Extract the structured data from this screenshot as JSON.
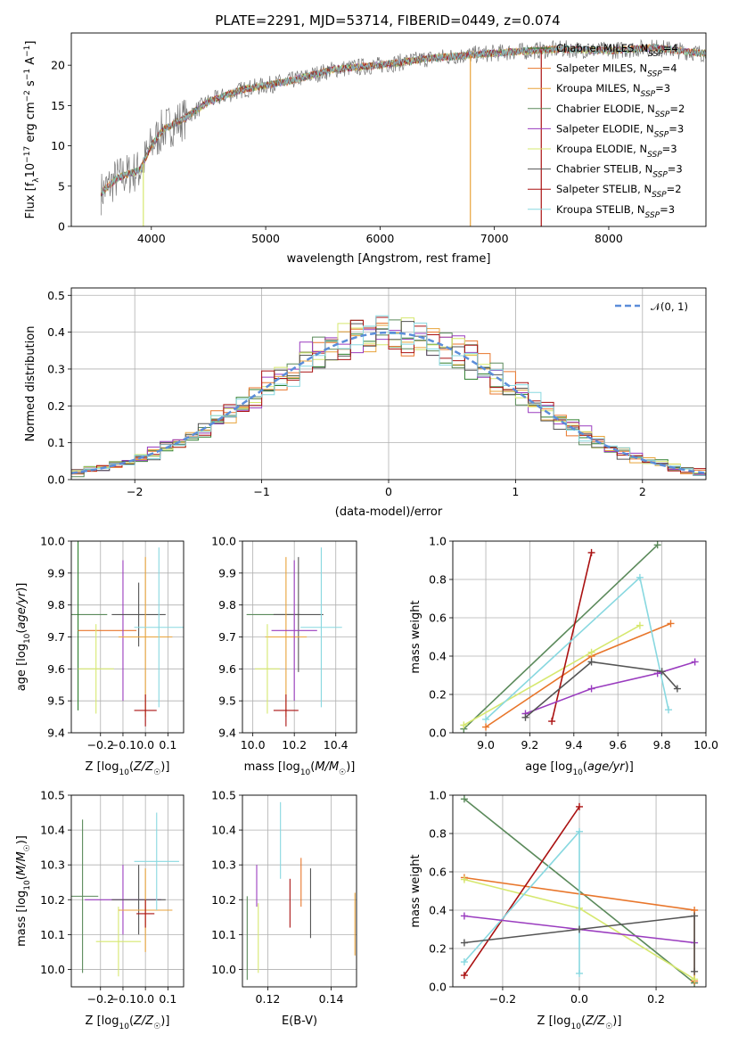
{
  "figure": {
    "title": "PLATE=2291, MJD=53714, FIBERID=0449, z=0.074"
  },
  "colors": {
    "palette": [
      "#2d7f2d",
      "#e8762b",
      "#e8a33a",
      "#5b8a5b",
      "#9a3cbf",
      "#d6e86f",
      "#555555",
      "#aa1111",
      "#88d8e0"
    ],
    "model_order": [
      "Chabrier MILES",
      "Salpeter MILES",
      "Kroupa MILES",
      "Chabrier ELODIE",
      "Salpeter ELODIE",
      "Kroupa ELODIE",
      "Chabrier STELIB",
      "Salpeter STELIB",
      "Kroupa STELIB"
    ]
  },
  "chart_data": [
    {
      "id": "spectrum",
      "type": "line",
      "title": "PLATE=2291, MJD=53714, FIBERID=0449, z=0.074",
      "xlabel": "wavelength [Angstrom, rest frame]",
      "ylabel": "Flux [f_λ 10^-17 erg cm^-2 s^-1 A^-1]",
      "xlim": [
        3300,
        8850
      ],
      "ylim": [
        0,
        24
      ],
      "xticks": [
        4000,
        5000,
        6000,
        7000,
        8000
      ],
      "yticks": [
        0,
        5,
        10,
        15,
        20
      ],
      "legend": [
        "Chabrier MILES, N_SSP=4",
        "Salpeter MILES, N_SSP=4",
        "Kroupa MILES, N_SSP=3",
        "Chabrier ELODIE, N_SSP=2",
        "Salpeter ELODIE, N_SSP=3",
        "Kroupa ELODIE, N_SSP=3",
        "Chabrier STELIB, N_SSP=3",
        "Salpeter STELIB, N_SSP=2",
        "Kroupa STELIB, N_SSP=3"
      ],
      "legend_loc": "upper right",
      "continuum": {
        "x": [
          3550,
          3700,
          3900,
          4000,
          4100,
          4300,
          4500,
          4800,
          5200,
          5600,
          6000,
          6400,
          6800,
          7200,
          7600,
          8000,
          8400,
          8800
        ],
        "y": [
          4,
          6,
          7,
          10,
          12,
          13.5,
          15.5,
          17,
          18,
          19.5,
          20,
          20.8,
          21.3,
          21.7,
          22,
          21.8,
          22.2,
          21.5
        ]
      }
    },
    {
      "id": "residuals",
      "type": "histogram",
      "xlabel": "(data-model)/error",
      "ylabel": "Normed distribution",
      "xlim": [
        -2.5,
        2.5
      ],
      "ylim": [
        0,
        0.52
      ],
      "xticks": [
        -2,
        -1,
        0,
        1,
        2
      ],
      "yticks": [
        0.0,
        0.1,
        0.2,
        0.3,
        0.4,
        0.5
      ],
      "grid": true,
      "reference": {
        "name": "N(0,1)",
        "label": "𝒩(0, 1)",
        "color": "#5b8dd9"
      },
      "bin_width": 0.1
    },
    {
      "id": "age_vs_Z",
      "type": "errorbar",
      "xlabel": "Z [log10(Z/Z☉)]",
      "ylabel": "age [log10(age/yr)]",
      "xlim": [
        -0.33,
        0.17
      ],
      "ylim": [
        9.4,
        10.0
      ],
      "xticks": [
        -0.2,
        -0.1,
        0.0,
        0.1
      ],
      "yticks": [
        9.4,
        9.5,
        9.6,
        9.7,
        9.8,
        9.9,
        10.0
      ],
      "points": [
        {
          "x": -0.3,
          "y": 9.77,
          "xerr": 0.13,
          "yerr": 0.0,
          "c": 3
        },
        {
          "x": -0.3,
          "y": 9.77,
          "xerr": 0.0,
          "yerr": 0.3,
          "c": 0
        },
        {
          "x": -0.17,
          "y": 9.72,
          "xerr": 0.13,
          "yerr": 0.0,
          "c": 1
        },
        {
          "x": -0.1,
          "y": 9.72,
          "xerr": 0.0,
          "yerr": 0.22,
          "c": 4
        },
        {
          "x": -0.03,
          "y": 9.77,
          "xerr": 0.12,
          "yerr": 0.1,
          "c": 6
        },
        {
          "x": 0.0,
          "y": 9.7,
          "xerr": 0.12,
          "yerr": 0.25,
          "c": 2
        },
        {
          "x": -0.22,
          "y": 9.6,
          "xerr": 0.08,
          "yerr": 0.14,
          "c": 5
        },
        {
          "x": 0.0,
          "y": 9.47,
          "xerr": 0.05,
          "yerr": 0.05,
          "c": 7
        },
        {
          "x": 0.06,
          "y": 9.73,
          "xerr": 0.11,
          "yerr": 0.25,
          "c": 8
        }
      ]
    },
    {
      "id": "age_vs_mass",
      "type": "errorbar",
      "xlabel": "mass [log10(M/M☉)]",
      "ylabel": "",
      "xlim": [
        9.95,
        10.5
      ],
      "ylim": [
        9.4,
        10.0
      ],
      "xticks": [
        10.0,
        10.2,
        10.4
      ],
      "yticks": [
        9.4,
        9.5,
        9.6,
        9.7,
        9.8,
        9.9,
        10.0
      ],
      "points": [
        {
          "x": 10.1,
          "y": 9.77,
          "xerr": 0.13,
          "yerr": 0.0,
          "c": 3
        },
        {
          "x": 10.22,
          "y": 9.77,
          "xerr": 0.12,
          "yerr": 0.18,
          "c": 6
        },
        {
          "x": 10.16,
          "y": 9.7,
          "xerr": 0.1,
          "yerr": 0.25,
          "c": 2
        },
        {
          "x": 10.2,
          "y": 9.72,
          "xerr": 0.11,
          "yerr": 0.22,
          "c": 4
        },
        {
          "x": 10.33,
          "y": 9.73,
          "xerr": 0.1,
          "yerr": 0.25,
          "c": 8
        },
        {
          "x": 10.07,
          "y": 9.6,
          "xerr": 0.06,
          "yerr": 0.14,
          "c": 5
        },
        {
          "x": 10.16,
          "y": 9.47,
          "xerr": 0.06,
          "yerr": 0.05,
          "c": 7
        }
      ]
    },
    {
      "id": "weight_vs_age",
      "type": "line",
      "xlabel": "age [log10(age/yr)]",
      "ylabel": "mass weight",
      "xlim": [
        8.85,
        10.0
      ],
      "ylim": [
        0.0,
        1.0
      ],
      "xticks": [
        9.0,
        9.2,
        9.4,
        9.6,
        9.8,
        10.0
      ],
      "yticks": [
        0.0,
        0.2,
        0.4,
        0.6,
        0.8,
        1.0
      ],
      "grid": true,
      "series": [
        {
          "c": 3,
          "x": [
            8.9,
            9.78
          ],
          "y": [
            0.02,
            0.98
          ]
        },
        {
          "c": 1,
          "x": [
            9.0,
            9.48,
            9.84
          ],
          "y": [
            0.03,
            0.4,
            0.57
          ]
        },
        {
          "c": 5,
          "x": [
            8.9,
            9.48,
            9.7
          ],
          "y": [
            0.04,
            0.42,
            0.56
          ]
        },
        {
          "c": 7,
          "x": [
            9.3,
            9.48
          ],
          "y": [
            0.06,
            0.94
          ]
        },
        {
          "c": 8,
          "x": [
            9.0,
            9.7,
            9.83
          ],
          "y": [
            0.07,
            0.81,
            0.12
          ]
        },
        {
          "c": 4,
          "x": [
            9.18,
            9.48,
            9.78,
            9.95
          ],
          "y": [
            0.1,
            0.23,
            0.31,
            0.37
          ]
        },
        {
          "c": 6,
          "x": [
            9.18,
            9.48,
            9.8,
            9.87
          ],
          "y": [
            0.08,
            0.37,
            0.32,
            0.23
          ]
        }
      ]
    },
    {
      "id": "mass_vs_Z",
      "type": "errorbar",
      "xlabel": "Z [log10(Z/Z☉)]",
      "ylabel": "mass [log10(M/M☉)]",
      "xlim": [
        -0.33,
        0.17
      ],
      "ylim": [
        9.95,
        10.5
      ],
      "xticks": [
        -0.2,
        -0.1,
        0.0,
        0.1
      ],
      "yticks": [
        10.0,
        10.1,
        10.2,
        10.3,
        10.4,
        10.5
      ],
      "points": [
        {
          "x": -0.28,
          "y": 10.21,
          "xerr": 0.07,
          "yerr": 0.22,
          "c": 3
        },
        {
          "x": -0.1,
          "y": 10.2,
          "xerr": 0.17,
          "yerr": 0.1,
          "c": 4
        },
        {
          "x": -0.03,
          "y": 10.2,
          "xerr": 0.12,
          "yerr": 0.1,
          "c": 6
        },
        {
          "x": -0.12,
          "y": 10.08,
          "xerr": 0.1,
          "yerr": 0.1,
          "c": 5
        },
        {
          "x": 0.0,
          "y": 10.17,
          "xerr": 0.12,
          "yerr": 0.12,
          "c": 2
        },
        {
          "x": 0.05,
          "y": 10.31,
          "xerr": 0.1,
          "yerr": 0.14,
          "c": 8
        },
        {
          "x": 0.0,
          "y": 10.16,
          "xerr": 0.04,
          "yerr": 0.04,
          "c": 7
        }
      ]
    },
    {
      "id": "mass_vs_ebv",
      "type": "errorbar",
      "xlabel": "E(B-V)",
      "ylabel": "",
      "xlim": [
        0.112,
        0.148
      ],
      "ylim": [
        9.95,
        10.5
      ],
      "xticks": [
        0.12,
        0.14
      ],
      "yticks": [
        10.0,
        10.1,
        10.2,
        10.3,
        10.4,
        10.5
      ],
      "points": [
        {
          "x": 0.1135,
          "y": 10.09,
          "xerr": 0.0,
          "yerr": 0.12,
          "c": 3
        },
        {
          "x": 0.1165,
          "y": 10.24,
          "xerr": 0.0,
          "yerr": 0.06,
          "c": 4
        },
        {
          "x": 0.117,
          "y": 10.09,
          "xerr": 0.0,
          "yerr": 0.1,
          "c": 5
        },
        {
          "x": 0.124,
          "y": 10.37,
          "xerr": 0.0,
          "yerr": 0.11,
          "c": 8
        },
        {
          "x": 0.127,
          "y": 10.19,
          "xerr": 0.0,
          "yerr": 0.07,
          "c": 7
        },
        {
          "x": 0.1305,
          "y": 10.25,
          "xerr": 0.0,
          "yerr": 0.07,
          "c": 1
        },
        {
          "x": 0.1335,
          "y": 10.19,
          "xerr": 0.0,
          "yerr": 0.1,
          "c": 6
        },
        {
          "x": 0.1475,
          "y": 10.13,
          "xerr": 0.0,
          "yerr": 0.09,
          "c": 2
        }
      ]
    },
    {
      "id": "weight_vs_Z",
      "type": "line",
      "xlabel": "Z [log10(Z/Z☉)]",
      "ylabel": "mass weight",
      "xlim": [
        -0.33,
        0.33
      ],
      "ylim": [
        0.0,
        1.0
      ],
      "xticks": [
        -0.2,
        0.0,
        0.2
      ],
      "yticks": [
        0.0,
        0.2,
        0.4,
        0.6,
        0.8,
        1.0
      ],
      "grid": true,
      "series": [
        {
          "c": 3,
          "x": [
            -0.3,
            0.3
          ],
          "y": [
            0.98,
            0.02
          ]
        },
        {
          "c": 1,
          "x": [
            -0.3,
            0.3,
            0.3
          ],
          "y": [
            0.57,
            0.4,
            0.03
          ]
        },
        {
          "c": 5,
          "x": [
            -0.3,
            0.0,
            0.3
          ],
          "y": [
            0.56,
            0.41,
            0.04
          ]
        },
        {
          "c": 7,
          "x": [
            -0.3,
            0.0
          ],
          "y": [
            0.06,
            0.94
          ]
        },
        {
          "c": 8,
          "x": [
            -0.3,
            0.0,
            0.0
          ],
          "y": [
            0.13,
            0.81,
            0.07
          ]
        },
        {
          "c": 4,
          "x": [
            -0.3,
            0.3
          ],
          "y": [
            0.37,
            0.23
          ]
        },
        {
          "c": 6,
          "x": [
            -0.3,
            0.0,
            0.3,
            0.3
          ],
          "y": [
            0.23,
            0.3,
            0.37,
            0.08
          ]
        }
      ]
    }
  ]
}
